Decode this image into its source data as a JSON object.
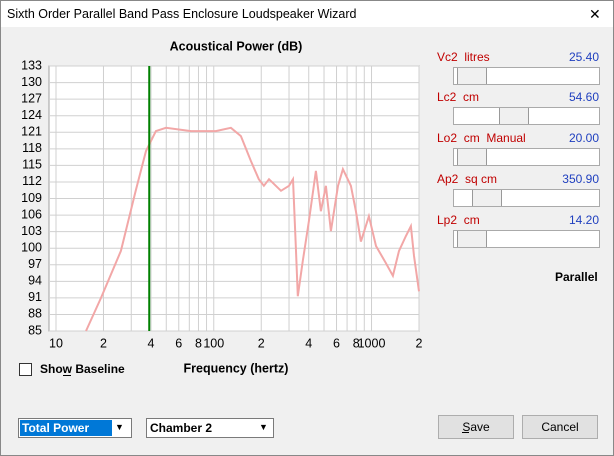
{
  "window": {
    "title": "Sixth Order Parallel Band Pass Enclosure Loudspeaker Wizard",
    "close": "✕"
  },
  "chart_data": {
    "type": "line",
    "title": "Acoustical Power (dB)",
    "x_label": "Frequency (hertz)",
    "xscale": "log",
    "grid": true,
    "xlim": [
      10,
      2000
    ],
    "ylim": [
      85,
      133
    ],
    "xticks": [
      10,
      {
        "value": 20,
        "label": "2"
      },
      {
        "value": 40,
        "label": "4"
      },
      {
        "value": 60,
        "label": "6"
      },
      {
        "value": 80,
        "label": "8"
      },
      100,
      {
        "value": 200,
        "label": "2"
      },
      {
        "value": 400,
        "label": "4"
      },
      {
        "value": 600,
        "label": "6"
      },
      {
        "value": 800,
        "label": "8"
      },
      1000,
      {
        "value": 2000,
        "label": "2"
      }
    ],
    "xminor": [
      30,
      50,
      70,
      90,
      300,
      500,
      700,
      900
    ],
    "yticks": [
      85,
      88,
      91,
      94,
      97,
      100,
      103,
      106,
      109,
      112,
      115,
      118,
      121,
      124,
      127,
      130,
      133
    ],
    "marker": {
      "value": 39,
      "color": "#008000"
    },
    "x": [
      15.5,
      19.3,
      25.8,
      32,
      37.2,
      43,
      49.8,
      71.7,
      103,
      128.5,
      148.6,
      172,
      193,
      208,
      224,
      267,
      300,
      318,
      332,
      341,
      367,
      401,
      444,
      478,
      514,
      553,
      613,
      659,
      740,
      796,
      857,
      963,
      1067,
      1234,
      1367,
      1493,
      1652,
      1778,
      1858,
      2000
    ],
    "series": [
      {
        "color": "#f2a7a7",
        "values": [
          85,
          91,
          99.5,
          110.4,
          117.6,
          121.2,
          121.8,
          121.2,
          121.2,
          121.8,
          120.3,
          115.8,
          112.5,
          111.3,
          112.5,
          110.4,
          111.3,
          112.5,
          99.5,
          91.3,
          97.7,
          104.9,
          114,
          106.7,
          111.3,
          103.1,
          111.3,
          114.3,
          111.3,
          106.7,
          101.2,
          105.8,
          100.4,
          97.3,
          95,
          99.5,
          102.2,
          104,
          98.6,
          92.2
        ]
      }
    ]
  },
  "sliders": [
    {
      "name": "Vc2  litres",
      "value": "25.40"
    },
    {
      "name": "Lc2  cm",
      "value": "54.60"
    },
    {
      "name": "Lo2  cm  Manual",
      "value": "20.00"
    },
    {
      "name": "Ap2  sq cm",
      "value": "350.90"
    },
    {
      "name": "Lp2  cm",
      "value": "14.20"
    }
  ],
  "mode": "Parallel",
  "checkbox": "Show Baseline",
  "dropdowns": [
    "Total Power",
    "Chamber 2"
  ],
  "buttons": [
    "Save",
    "Cancel"
  ]
}
